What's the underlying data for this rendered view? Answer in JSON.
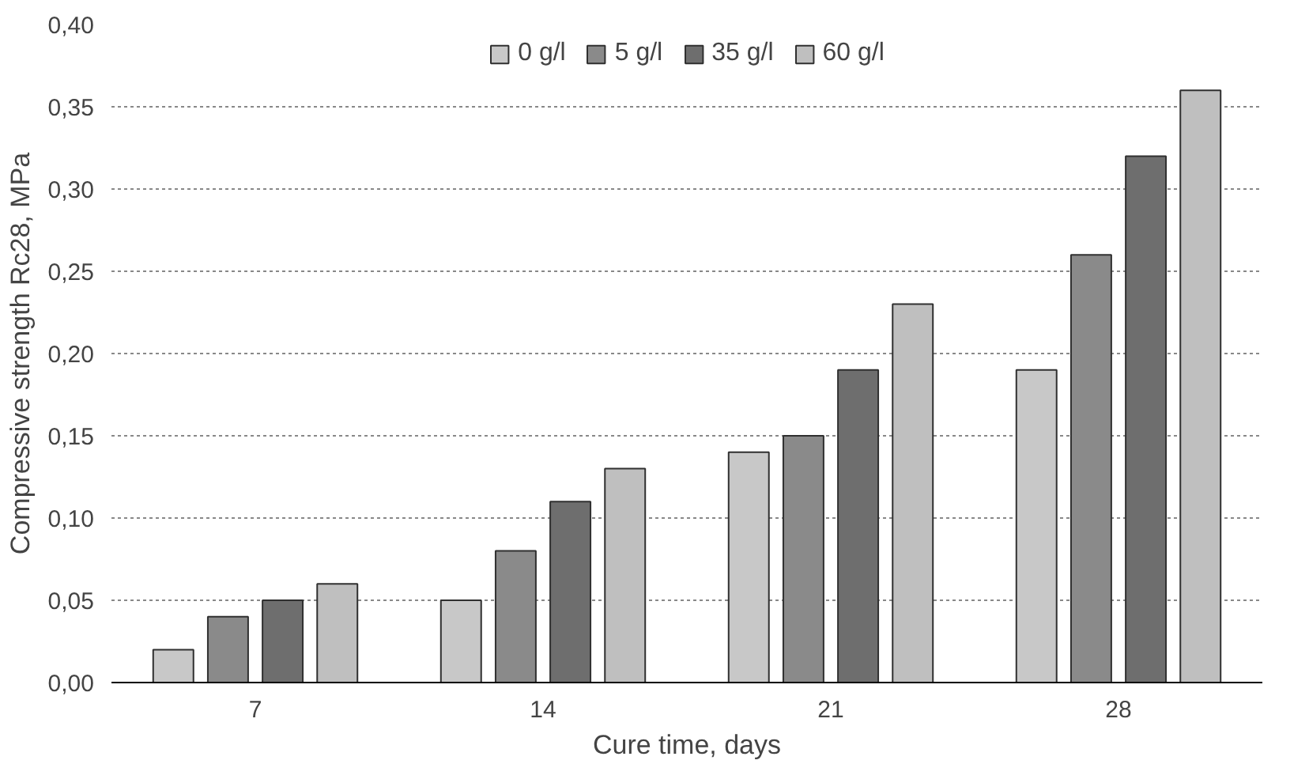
{
  "chart_data": {
    "type": "bar",
    "xlabel": "Cure time, days",
    "ylabel": "Compressive strength Rc28, MPa",
    "categories": [
      "7",
      "14",
      "21",
      "28"
    ],
    "series": [
      {
        "name": "0 g/l",
        "color": "#c8c8c8",
        "values": [
          0.02,
          0.05,
          0.14,
          0.19
        ]
      },
      {
        "name": "5 g/l",
        "color": "#8a8a8a",
        "values": [
          0.04,
          0.08,
          0.15,
          0.26
        ]
      },
      {
        "name": "35 g/l",
        "color": "#6e6e6e",
        "values": [
          0.05,
          0.11,
          0.19,
          0.32
        ]
      },
      {
        "name": "60 g/l",
        "color": "#bfbfbf",
        "values": [
          0.06,
          0.13,
          0.23,
          0.36
        ]
      }
    ],
    "ylim": [
      0,
      0.4
    ],
    "yticks": [
      {
        "value": 0,
        "label": "0,00"
      },
      {
        "value": 0.05,
        "label": "0,05"
      },
      {
        "value": 0.1,
        "label": "0,10"
      },
      {
        "value": 0.15,
        "label": "0,15"
      },
      {
        "value": 0.2,
        "label": "0,20"
      },
      {
        "value": 0.25,
        "label": "0,25"
      },
      {
        "value": 0.3,
        "label": "0,30"
      },
      {
        "value": 0.35,
        "label": "0,35"
      },
      {
        "value": 0.4,
        "label": "0,40"
      }
    ],
    "grid": "y",
    "legend": "top"
  }
}
